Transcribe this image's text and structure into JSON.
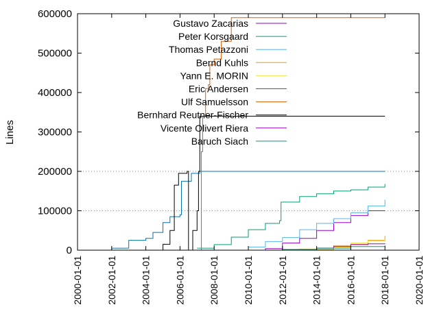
{
  "chart_data": {
    "type": "line",
    "title": "",
    "xlabel": "",
    "ylabel": "Lines",
    "xlim": [
      "2000-01-01",
      "2020-01-01"
    ],
    "ylim": [
      0,
      600000
    ],
    "x_ticks": [
      "2000-01-01",
      "2002-01-01",
      "2004-01-01",
      "2006-01-01",
      "2008-01-01",
      "2010-01-01",
      "2012-01-01",
      "2014-01-01",
      "2016-01-01",
      "2018-01-01",
      "2020-01-01"
    ],
    "y_ticks": [
      0,
      100000,
      200000,
      300000,
      400000,
      500000,
      600000
    ],
    "y_tick_labels": [
      "0",
      "100000",
      "200000",
      "300000",
      "400000",
      "500000",
      "600000"
    ],
    "grid": "horizontal dotted at 100000 and 200000",
    "legend_position": "top-center",
    "series": [
      {
        "name": "Gustavo Zacarias",
        "color": "#9400d3",
        "points": [
          [
            "2009-10-01",
            0
          ],
          [
            "2011-01-01",
            4000
          ],
          [
            "2012-01-01",
            18000
          ],
          [
            "2013-01-01",
            30000
          ],
          [
            "2014-01-01",
            50000
          ],
          [
            "2015-01-01",
            70000
          ],
          [
            "2016-01-01",
            88000
          ],
          [
            "2017-01-01",
            100000
          ],
          [
            "2018-01-01",
            100000
          ]
        ]
      },
      {
        "name": "Peter Korsgaard",
        "color": "#009e73",
        "points": [
          [
            "2007-01-01",
            5000
          ],
          [
            "2008-01-01",
            14000
          ],
          [
            "2009-01-01",
            33000
          ],
          [
            "2010-01-01",
            52000
          ],
          [
            "2011-01-01",
            68000
          ],
          [
            "2011-11-01",
            75000
          ],
          [
            "2011-12-01",
            122000
          ],
          [
            "2013-01-01",
            136000
          ],
          [
            "2014-01-01",
            143000
          ],
          [
            "2015-01-01",
            150000
          ],
          [
            "2016-01-01",
            153000
          ],
          [
            "2017-01-01",
            160000
          ],
          [
            "2018-01-01",
            168000
          ]
        ]
      },
      {
        "name": "Thomas Petazzoni",
        "color": "#56b4e9",
        "points": [
          [
            "2009-06-01",
            0
          ],
          [
            "2010-01-01",
            8000
          ],
          [
            "2011-01-01",
            22000
          ],
          [
            "2012-01-01",
            32000
          ],
          [
            "2013-01-01",
            52000
          ],
          [
            "2014-01-01",
            68000
          ],
          [
            "2015-01-01",
            80000
          ],
          [
            "2016-01-01",
            95000
          ],
          [
            "2017-01-01",
            112000
          ],
          [
            "2018-01-01",
            128000
          ]
        ]
      },
      {
        "name": "Bernd Kuhls",
        "color": "#e69f00",
        "points": [
          [
            "2013-06-01",
            0
          ],
          [
            "2014-01-01",
            2000
          ],
          [
            "2015-01-01",
            8000
          ],
          [
            "2016-01-01",
            15000
          ],
          [
            "2017-01-01",
            25000
          ],
          [
            "2018-01-01",
            36000
          ]
        ]
      },
      {
        "name": "Yann E. MORIN",
        "color": "#f0e442",
        "points": [
          [
            "2012-06-01",
            0
          ],
          [
            "2013-01-01",
            3000
          ],
          [
            "2014-01-01",
            6000
          ],
          [
            "2015-01-01",
            12000
          ],
          [
            "2016-01-01",
            18000
          ],
          [
            "2017-01-01",
            23000
          ],
          [
            "2018-01-01",
            28000
          ]
        ]
      },
      {
        "name": "Eric Andersen",
        "color": "#0072b2",
        "points": [
          [
            "2001-06-01",
            0
          ],
          [
            "2002-01-01",
            5000
          ],
          [
            "2003-01-01",
            25000
          ],
          [
            "2004-01-01",
            30000
          ],
          [
            "2004-06-01",
            45000
          ],
          [
            "2005-01-01",
            70000
          ],
          [
            "2005-06-01",
            85000
          ],
          [
            "2006-01-01",
            90000
          ],
          [
            "2006-02-01",
            175000
          ],
          [
            "2006-09-01",
            195000
          ],
          [
            "2007-03-01",
            200000
          ],
          [
            "2018-01-01",
            200000
          ]
        ]
      },
      {
        "name": "Ulf Samuelsson",
        "color": "#d55e00",
        "points": [
          [
            "2007-02-01",
            0
          ],
          [
            "2007-04-01",
            250000
          ],
          [
            "2007-05-01",
            340000
          ],
          [
            "2007-07-01",
            410000
          ],
          [
            "2007-09-01",
            420000
          ],
          [
            "2007-10-01",
            470000
          ],
          [
            "2008-01-01",
            485000
          ],
          [
            "2008-06-01",
            530000
          ],
          [
            "2009-01-01",
            590000
          ],
          [
            "2018-01-01",
            590000
          ]
        ]
      },
      {
        "name": "Bernhard Reutner-Fischer",
        "color": "#000000",
        "points": [
          [
            "2004-06-01",
            0
          ],
          [
            "2005-01-01",
            15000
          ],
          [
            "2005-06-01",
            50000
          ],
          [
            "2005-09-01",
            165000
          ],
          [
            "2005-12-01",
            195000
          ],
          [
            "2006-06-01",
            200000
          ],
          [
            "2006-07-01",
            0
          ],
          [
            "2006-10-01",
            50000
          ],
          [
            "2007-01-01",
            100000
          ],
          [
            "2007-02-01",
            200000
          ],
          [
            "2007-03-01",
            340000
          ],
          [
            "2018-01-01",
            340000
          ]
        ]
      },
      {
        "name": "Vicente Olivert Riera",
        "color": "#9400d3",
        "points": [
          [
            "2013-01-01",
            0
          ],
          [
            "2014-01-01",
            5000
          ],
          [
            "2015-01-01",
            10000
          ],
          [
            "2016-01-01",
            14000
          ],
          [
            "2017-01-01",
            16000
          ],
          [
            "2018-01-01",
            17000
          ]
        ]
      },
      {
        "name": "Baruch Siach",
        "color": "#009e73",
        "points": [
          [
            "2010-01-01",
            0
          ],
          [
            "2012-01-01",
            2000
          ],
          [
            "2014-01-01",
            5000
          ],
          [
            "2016-01-01",
            9000
          ],
          [
            "2018-01-01",
            12000
          ]
        ]
      }
    ]
  }
}
